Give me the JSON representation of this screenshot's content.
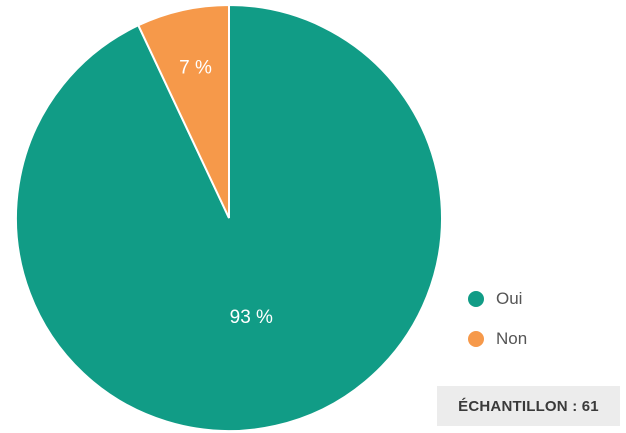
{
  "chart_data": {
    "type": "pie",
    "categories": [
      "Oui",
      "Non"
    ],
    "values": [
      93,
      7
    ],
    "colors": [
      "#119c86",
      "#f6994a"
    ],
    "slice_labels": [
      "93 %",
      "7 %"
    ],
    "start_angle": "12 o'clock, clockwise",
    "legend_placement": "bottom-right"
  },
  "legend": {
    "items": [
      {
        "label": "Oui",
        "color": "#119c86"
      },
      {
        "label": "Non",
        "color": "#f6994a"
      }
    ]
  },
  "sample": {
    "label": "ÉCHANTILLON : 61"
  }
}
